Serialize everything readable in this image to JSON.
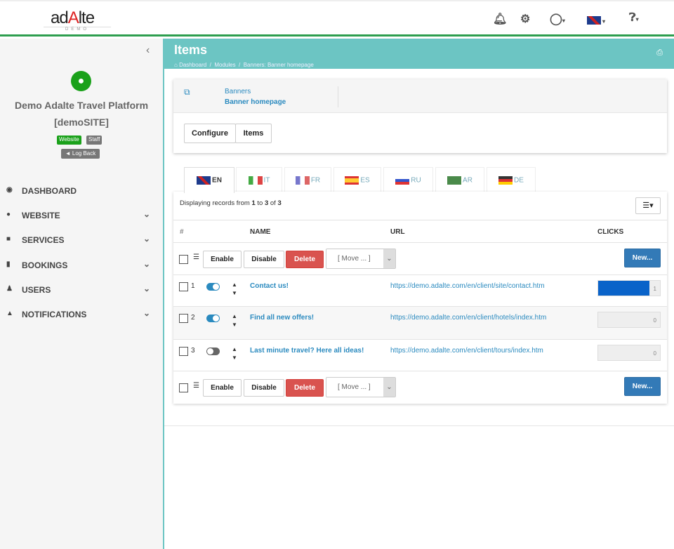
{
  "header": {
    "logo": "adAlte",
    "logo_sub": "DEMO",
    "icons": [
      "bell-icon",
      "gear-icon",
      "user-icon",
      "uk-flag-icon",
      "help-icon"
    ]
  },
  "sidebar": {
    "site_name": "Demo Adalte Travel Platform",
    "site_code": "[demoSITE]",
    "badges": [
      "Website",
      "Staff"
    ],
    "log_back": "Log Back",
    "items": [
      {
        "label": "DASHBOARD",
        "icon": "dashboard-icon"
      },
      {
        "label": "WEBSITE",
        "icon": "globe-icon"
      },
      {
        "label": "SERVICES",
        "icon": "briefcase-icon"
      },
      {
        "label": "BOOKINGS",
        "icon": "book-icon"
      },
      {
        "label": "USERS",
        "icon": "user-icon"
      },
      {
        "label": "NOTIFICATIONS",
        "icon": "bell-icon"
      }
    ]
  },
  "main": {
    "title": "Items",
    "breadcrumbs": [
      "Dashboard",
      "Modules",
      "Banners: Banner homepage"
    ],
    "card": {
      "module": "Banners",
      "item": "Banner homepage",
      "buttons": [
        "Configure",
        "Items"
      ]
    },
    "tabs": [
      "EN",
      "IT",
      "FR",
      "ES",
      "RU",
      "AR",
      "DE"
    ],
    "records": {
      "prefix": "Displaying records from",
      "from": "1",
      "to_word": "to",
      "to": "3",
      "of_word": "of",
      "total": "3"
    },
    "columns": [
      "#",
      "NAME",
      "URL",
      "CLICKS"
    ],
    "actions": {
      "enable": "Enable",
      "disable": "Disable",
      "delete": "Delete",
      "move": "[ Move ... ]",
      "new": "New..."
    },
    "rows": [
      {
        "num": "1",
        "enabled": true,
        "name": "Contact us!",
        "url": "https://demo.adalte.com/en/client/site/contact.htm",
        "clicks": "1",
        "clicks_fill": 1
      },
      {
        "num": "2",
        "enabled": true,
        "name": "Find all new offers!",
        "url": "https://demo.adalte.com/en/client/hotels/index.htm",
        "clicks": "0",
        "clicks_fill": 0
      },
      {
        "num": "3",
        "enabled": false,
        "name": "Last minute travel? Here all ideas!",
        "url": "https://demo.adalte.com/en/client/tours/index.htm",
        "clicks": "0",
        "clicks_fill": 0
      }
    ]
  },
  "colors": {
    "accent": "#6cc5c3",
    "green": "#2e9e4f",
    "primary": "#337ab7",
    "danger": "#d9534f",
    "toggle_on": "#2a8abf",
    "bar": "#0a63c9"
  }
}
